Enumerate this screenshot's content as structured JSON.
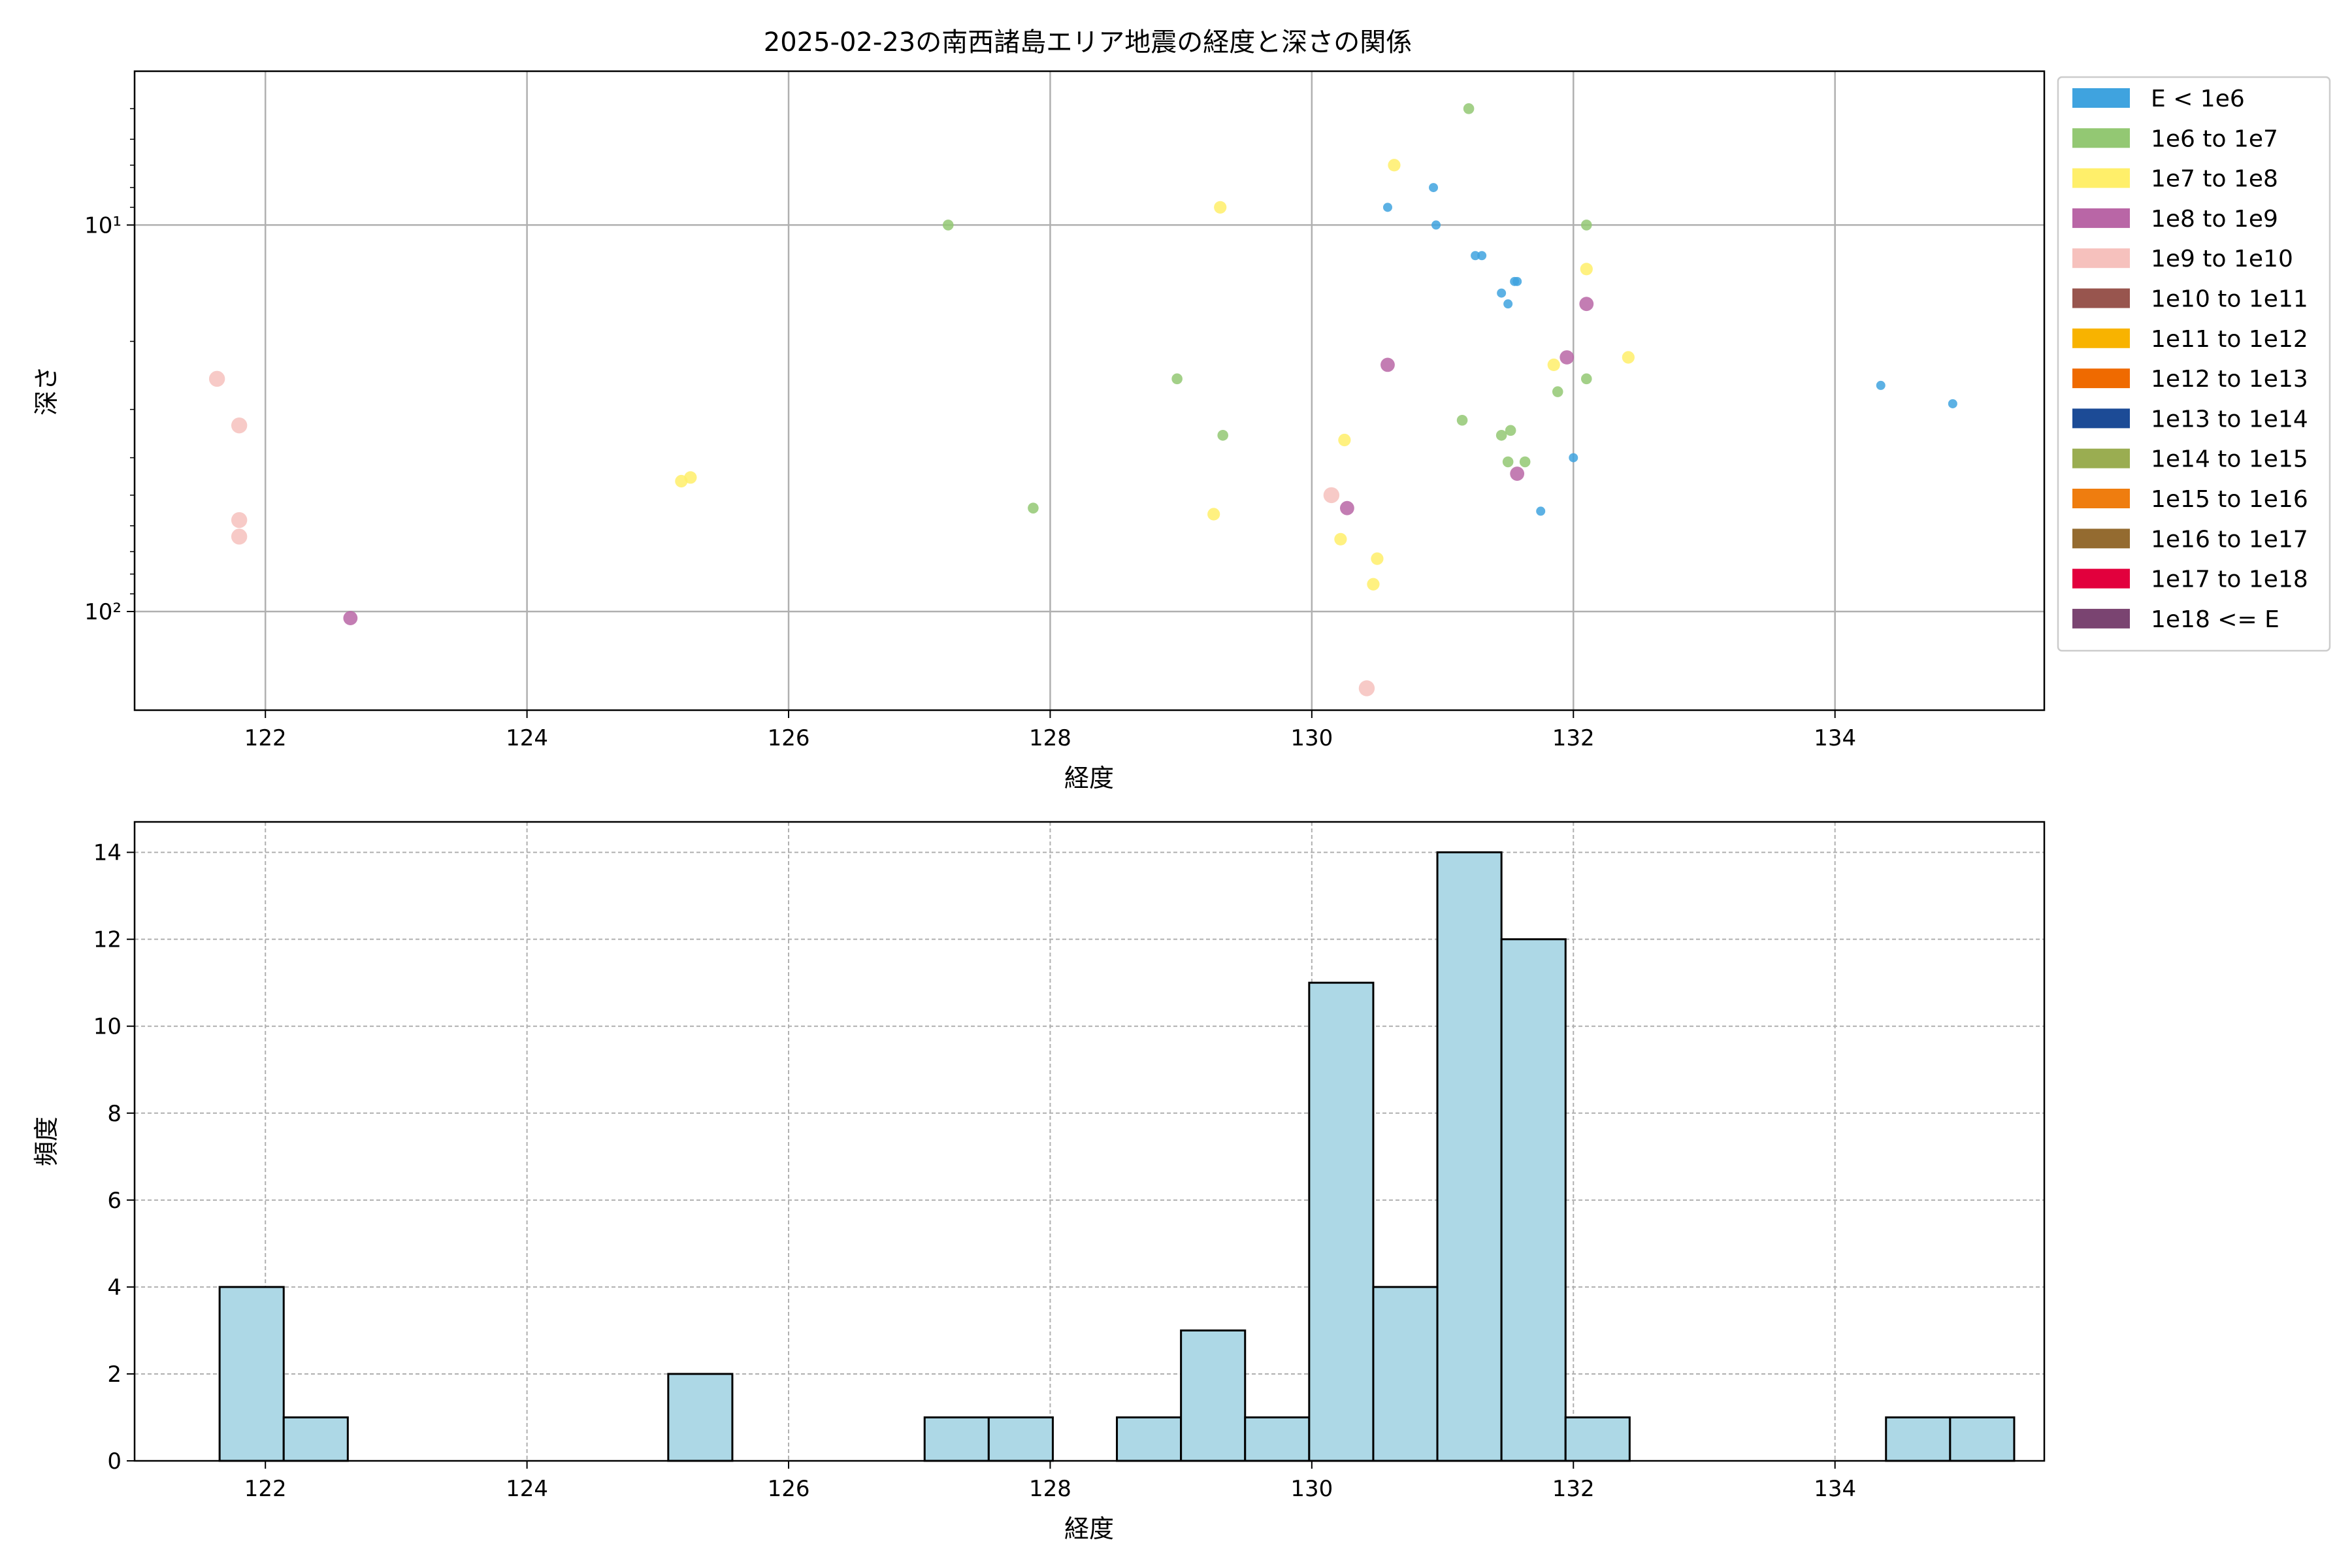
{
  "chart_data": [
    {
      "type": "scatter",
      "title": "2025-02-23の南西諸島エリア地震の経度と深さの関係",
      "xlabel": "経度",
      "ylabel": "深さ",
      "xlim": [
        121.0,
        135.6
      ],
      "ylim": [
        180,
        4.0
      ],
      "yscale": "log",
      "y_inverted": true,
      "grid": true,
      "legend_position": "outside-right",
      "x_ticks": [
        122,
        124,
        126,
        128,
        130,
        132,
        134
      ],
      "y_ticks": [
        {
          "value": 10,
          "label": "10¹"
        },
        {
          "value": 100,
          "label": "10²"
        }
      ],
      "legend": [
        {
          "label": "E < 1e6",
          "color": "#3fa3df"
        },
        {
          "label": "1e6 to 1e7",
          "color": "#93c873"
        },
        {
          "label": "1e7 to 1e8",
          "color": "#ffef6a"
        },
        {
          "label": "1e8 to 1e9",
          "color": "#b966a6"
        },
        {
          "label": "1e9 to 1e10",
          "color": "#f6c1bd"
        },
        {
          "label": "1e10 to 1e11",
          "color": "#98554e"
        },
        {
          "label": "1e11 to 1e12",
          "color": "#f8b300"
        },
        {
          "label": "1e12 to 1e13",
          "color": "#ef6a00"
        },
        {
          "label": "1e13 to 1e14",
          "color": "#1c4b96"
        },
        {
          "label": "1e14 to 1e15",
          "color": "#9aad51"
        },
        {
          "label": "1e15 to 1e16",
          "color": "#ef7d0f"
        },
        {
          "label": "1e16 to 1e17",
          "color": "#946b30"
        },
        {
          "label": "1e17 to 1e18",
          "color": "#e2003d"
        },
        {
          "label": "1e18 <= E",
          "color": "#7a4471"
        }
      ],
      "series": [
        {
          "class": 0,
          "points": [
            [
              130.58,
              9.0
            ],
            [
              130.93,
              8.0
            ],
            [
              130.95,
              10.0
            ],
            [
              131.25,
              12.0
            ],
            [
              131.3,
              12.0
            ],
            [
              131.55,
              14.0
            ],
            [
              131.57,
              14.0
            ],
            [
              131.45,
              15.0
            ],
            [
              131.5,
              16.0
            ],
            [
              132.0,
              40.0
            ],
            [
              131.75,
              55.0
            ],
            [
              134.35,
              26.0
            ],
            [
              134.9,
              29.0
            ]
          ]
        },
        {
          "class": 1,
          "points": [
            [
              127.22,
              10.0
            ],
            [
              131.2,
              5.0
            ],
            [
              132.1,
              10.0
            ],
            [
              128.97,
              25.0
            ],
            [
              132.1,
              25.0
            ],
            [
              131.88,
              27.0
            ],
            [
              131.15,
              32.0
            ],
            [
              129.32,
              35.0
            ],
            [
              131.52,
              34.0
            ],
            [
              131.45,
              35.0
            ],
            [
              131.5,
              41.0
            ],
            [
              131.63,
              41.0
            ],
            [
              127.87,
              54.0
            ]
          ]
        },
        {
          "class": 2,
          "points": [
            [
              130.63,
              7.0
            ],
            [
              129.3,
              9.0
            ],
            [
              132.1,
              13.0
            ],
            [
              131.85,
              23.0
            ],
            [
              132.42,
              22.0
            ],
            [
              130.25,
              36.0
            ],
            [
              125.18,
              46.0
            ],
            [
              125.25,
              45.0
            ],
            [
              129.25,
              56.0
            ],
            [
              130.22,
              65.0
            ],
            [
              130.5,
              73.0
            ],
            [
              130.47,
              85.0
            ]
          ]
        },
        {
          "class": 3,
          "points": [
            [
              132.1,
              16.0
            ],
            [
              131.95,
              22.0
            ],
            [
              130.58,
              23.0
            ],
            [
              131.57,
              44.0
            ],
            [
              130.27,
              54.0
            ],
            [
              122.65,
              104.0
            ]
          ]
        },
        {
          "class": 4,
          "points": [
            [
              121.63,
              25.0
            ],
            [
              121.8,
              33.0
            ],
            [
              121.8,
              58.0
            ],
            [
              121.8,
              64.0
            ],
            [
              130.15,
              50.0
            ],
            [
              130.42,
              158.0
            ]
          ]
        }
      ]
    },
    {
      "type": "bar",
      "subtype": "histogram",
      "xlabel": "経度",
      "ylabel": "頻度",
      "xlim": [
        121.0,
        135.6
      ],
      "ylim": [
        0,
        14.7
      ],
      "grid": true,
      "bar_color": "#add8e6",
      "bin_width": 0.49,
      "bin_start": 121.65,
      "x_ticks": [
        122,
        124,
        126,
        128,
        130,
        132,
        134
      ],
      "y_ticks": [
        0,
        2,
        4,
        6,
        8,
        10,
        12,
        14
      ],
      "bins": [
        {
          "x0": 121.65,
          "count": 4
        },
        {
          "x0": 122.14,
          "count": 1
        },
        {
          "x0": 125.08,
          "count": 2
        },
        {
          "x0": 127.04,
          "count": 1
        },
        {
          "x0": 127.53,
          "count": 1
        },
        {
          "x0": 128.51,
          "count": 1
        },
        {
          "x0": 129.0,
          "count": 3
        },
        {
          "x0": 129.49,
          "count": 1
        },
        {
          "x0": 129.98,
          "count": 11
        },
        {
          "x0": 130.47,
          "count": 4
        },
        {
          "x0": 130.96,
          "count": 14
        },
        {
          "x0": 131.45,
          "count": 12
        },
        {
          "x0": 131.94,
          "count": 1
        },
        {
          "x0": 134.39,
          "count": 1
        },
        {
          "x0": 134.88,
          "count": 1
        }
      ]
    }
  ]
}
